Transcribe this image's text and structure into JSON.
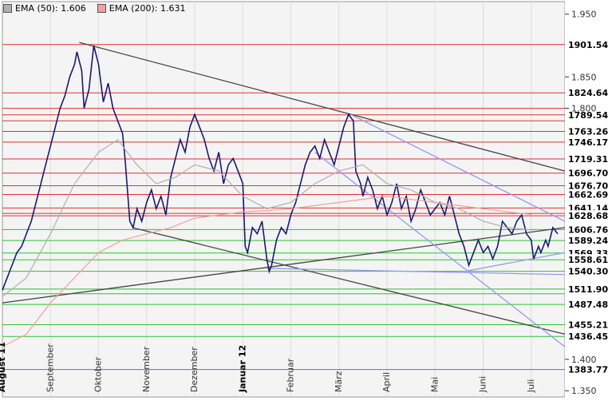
{
  "legend": [
    {
      "label": "EMA (50): 1.606",
      "color": "#b0b0b0"
    },
    {
      "label": "EMA (200): 1.631",
      "color": "#f0a0a0"
    }
  ],
  "chart_data": {
    "type": "line",
    "y_axis": {
      "ticks": [
        {
          "value": 1.95,
          "label": "1.950"
        },
        {
          "value": 1.85,
          "label": "1.850"
        },
        {
          "value": 1.8,
          "label": "1.800"
        },
        {
          "value": 1.4,
          "label": "1.400"
        },
        {
          "value": 1.35,
          "label": "1.350"
        }
      ],
      "ylim": [
        1.34,
        1.97
      ]
    },
    "x_axis": {
      "labels": [
        {
          "label": "August 11",
          "bold": true,
          "x": 0.5
        },
        {
          "label": "September",
          "bold": false,
          "x": 1.5
        },
        {
          "label": "Oktober",
          "bold": false,
          "x": 2.5
        },
        {
          "label": "November",
          "bold": false,
          "x": 3.5
        },
        {
          "label": "Dezember",
          "bold": false,
          "x": 4.5
        },
        {
          "label": "Januar 12",
          "bold": true,
          "x": 5.5
        },
        {
          "label": "Februar",
          "bold": false,
          "x": 6.5
        },
        {
          "label": "März",
          "bold": false,
          "x": 7.5
        },
        {
          "label": "April",
          "bold": false,
          "x": 8.5
        },
        {
          "label": "Mai",
          "bold": false,
          "x": 9.5
        },
        {
          "label": "Juni",
          "bold": false,
          "x": 10.5
        },
        {
          "label": "Juli",
          "bold": false,
          "x": 11.5
        }
      ],
      "xlim": [
        0,
        11.7
      ]
    },
    "resistance_levels": [
      {
        "value": 1.90154,
        "label": "1901.54"
      },
      {
        "value": 1.82464,
        "label": "1824.64"
      },
      {
        "value": 1.8,
        "label": ""
      },
      {
        "value": 1.78954,
        "label": "1789.54"
      },
      {
        "value": 1.78,
        "label": ""
      },
      {
        "value": 1.76326,
        "label": "1763.26"
      },
      {
        "value": 1.74617,
        "label": "1746.17"
      },
      {
        "value": 1.71931,
        "label": "1719.31"
      },
      {
        "value": 1.6967,
        "label": "1696.70"
      },
      {
        "value": 1.6767,
        "label": "1676.70"
      },
      {
        "value": 1.66269,
        "label": "1662.69"
      },
      {
        "value": 1.6411,
        "label": "1641.14"
      },
      {
        "value": 1.6325,
        "label": ""
      },
      {
        "value": 1.62868,
        "label": "1628.68"
      }
    ],
    "support_levels": [
      {
        "value": 1.60676,
        "label": "1606.76"
      },
      {
        "value": 1.58924,
        "label": "1589.24"
      },
      {
        "value": 1.56933,
        "label": "1569.33"
      },
      {
        "value": 1.5586,
        "label": "1558.61"
      },
      {
        "value": 1.5403,
        "label": "1540.30"
      },
      {
        "value": 1.5119,
        "label": "1511.90"
      },
      {
        "value": 1.5045,
        "label": ""
      },
      {
        "value": 1.48748,
        "label": "1487.48"
      },
      {
        "value": 1.45521,
        "label": "1455.21"
      },
      {
        "value": 1.43645,
        "label": "1436.45"
      }
    ],
    "blue_level": {
      "value": 1.38377,
      "label": "1383.77"
    },
    "series": [
      {
        "name": "Price",
        "color": "#1a1a6e",
        "points": [
          [
            0.0,
            1.51
          ],
          [
            0.1,
            1.53
          ],
          [
            0.2,
            1.55
          ],
          [
            0.3,
            1.57
          ],
          [
            0.4,
            1.58
          ],
          [
            0.5,
            1.6
          ],
          [
            0.6,
            1.62
          ],
          [
            0.7,
            1.65
          ],
          [
            0.8,
            1.68
          ],
          [
            0.9,
            1.71
          ],
          [
            1.0,
            1.74
          ],
          [
            1.1,
            1.77
          ],
          [
            1.2,
            1.8
          ],
          [
            1.3,
            1.82
          ],
          [
            1.4,
            1.85
          ],
          [
            1.5,
            1.87
          ],
          [
            1.55,
            1.89
          ],
          [
            1.65,
            1.86
          ],
          [
            1.7,
            1.8
          ],
          [
            1.8,
            1.83
          ],
          [
            1.9,
            1.9
          ],
          [
            2.0,
            1.87
          ],
          [
            2.1,
            1.81
          ],
          [
            2.2,
            1.84
          ],
          [
            2.3,
            1.8
          ],
          [
            2.4,
            1.78
          ],
          [
            2.5,
            1.76
          ],
          [
            2.55,
            1.72
          ],
          [
            2.65,
            1.62
          ],
          [
            2.72,
            1.61
          ],
          [
            2.8,
            1.64
          ],
          [
            2.9,
            1.62
          ],
          [
            3.0,
            1.65
          ],
          [
            3.1,
            1.67
          ],
          [
            3.2,
            1.64
          ],
          [
            3.3,
            1.66
          ],
          [
            3.4,
            1.63
          ],
          [
            3.5,
            1.69
          ],
          [
            3.6,
            1.72
          ],
          [
            3.7,
            1.75
          ],
          [
            3.8,
            1.73
          ],
          [
            3.9,
            1.77
          ],
          [
            4.0,
            1.79
          ],
          [
            4.1,
            1.77
          ],
          [
            4.2,
            1.75
          ],
          [
            4.3,
            1.72
          ],
          [
            4.4,
            1.7
          ],
          [
            4.5,
            1.73
          ],
          [
            4.6,
            1.68
          ],
          [
            4.7,
            1.71
          ],
          [
            4.8,
            1.72
          ],
          [
            4.9,
            1.7
          ],
          [
            5.0,
            1.68
          ],
          [
            5.05,
            1.58
          ],
          [
            5.1,
            1.57
          ],
          [
            5.2,
            1.61
          ],
          [
            5.3,
            1.6
          ],
          [
            5.4,
            1.62
          ],
          [
            5.5,
            1.56
          ],
          [
            5.55,
            1.54
          ],
          [
            5.6,
            1.55
          ],
          [
            5.7,
            1.59
          ],
          [
            5.8,
            1.61
          ],
          [
            5.9,
            1.6
          ],
          [
            6.0,
            1.63
          ],
          [
            6.1,
            1.65
          ],
          [
            6.2,
            1.68
          ],
          [
            6.3,
            1.71
          ],
          [
            6.4,
            1.73
          ],
          [
            6.5,
            1.74
          ],
          [
            6.6,
            1.72
          ],
          [
            6.7,
            1.75
          ],
          [
            6.8,
            1.73
          ],
          [
            6.9,
            1.71
          ],
          [
            7.0,
            1.74
          ],
          [
            7.1,
            1.77
          ],
          [
            7.2,
            1.79
          ],
          [
            7.3,
            1.78
          ],
          [
            7.35,
            1.7
          ],
          [
            7.45,
            1.68
          ],
          [
            7.5,
            1.66
          ],
          [
            7.6,
            1.69
          ],
          [
            7.7,
            1.67
          ],
          [
            7.8,
            1.64
          ],
          [
            7.9,
            1.66
          ],
          [
            8.0,
            1.63
          ],
          [
            8.1,
            1.65
          ],
          [
            8.2,
            1.68
          ],
          [
            8.3,
            1.64
          ],
          [
            8.4,
            1.66
          ],
          [
            8.5,
            1.62
          ],
          [
            8.6,
            1.64
          ],
          [
            8.7,
            1.67
          ],
          [
            8.8,
            1.65
          ],
          [
            8.9,
            1.63
          ],
          [
            9.0,
            1.64
          ],
          [
            9.1,
            1.65
          ],
          [
            9.2,
            1.63
          ],
          [
            9.3,
            1.66
          ],
          [
            9.4,
            1.63
          ],
          [
            9.5,
            1.6
          ],
          [
            9.6,
            1.58
          ],
          [
            9.7,
            1.55
          ],
          [
            9.8,
            1.57
          ],
          [
            9.9,
            1.59
          ],
          [
            10.0,
            1.57
          ],
          [
            10.1,
            1.58
          ],
          [
            10.2,
            1.56
          ],
          [
            10.3,
            1.58
          ],
          [
            10.4,
            1.62
          ],
          [
            10.5,
            1.61
          ],
          [
            10.6,
            1.6
          ],
          [
            10.7,
            1.62
          ],
          [
            10.8,
            1.63
          ],
          [
            10.9,
            1.6
          ],
          [
            11.0,
            1.59
          ],
          [
            11.05,
            1.56
          ],
          [
            11.15,
            1.58
          ],
          [
            11.2,
            1.57
          ],
          [
            11.3,
            1.59
          ],
          [
            11.35,
            1.58
          ],
          [
            11.45,
            1.61
          ],
          [
            11.55,
            1.6
          ]
        ]
      },
      {
        "name": "EMA (50)",
        "color": "#b0b0b0",
        "points": [
          [
            0.0,
            1.5
          ],
          [
            0.5,
            1.53
          ],
          [
            1.0,
            1.6
          ],
          [
            1.5,
            1.68
          ],
          [
            2.0,
            1.73
          ],
          [
            2.4,
            1.75
          ],
          [
            2.8,
            1.71
          ],
          [
            3.2,
            1.68
          ],
          [
            3.6,
            1.69
          ],
          [
            4.0,
            1.71
          ],
          [
            4.5,
            1.7
          ],
          [
            5.0,
            1.66
          ],
          [
            5.5,
            1.64
          ],
          [
            6.0,
            1.65
          ],
          [
            6.5,
            1.68
          ],
          [
            7.0,
            1.7
          ],
          [
            7.5,
            1.71
          ],
          [
            8.0,
            1.68
          ],
          [
            8.5,
            1.67
          ],
          [
            9.0,
            1.65
          ],
          [
            9.5,
            1.64
          ],
          [
            10.0,
            1.62
          ],
          [
            10.5,
            1.61
          ],
          [
            11.0,
            1.606
          ]
        ]
      },
      {
        "name": "EMA (200)",
        "color": "#f0a0a0",
        "points": [
          [
            0.0,
            1.42
          ],
          [
            0.5,
            1.44
          ],
          [
            1.0,
            1.49
          ],
          [
            1.5,
            1.53
          ],
          [
            2.0,
            1.57
          ],
          [
            2.5,
            1.59
          ],
          [
            3.0,
            1.6
          ],
          [
            3.5,
            1.61
          ],
          [
            4.0,
            1.625
          ],
          [
            4.5,
            1.63
          ],
          [
            5.0,
            1.635
          ],
          [
            5.5,
            1.637
          ],
          [
            6.0,
            1.64
          ],
          [
            6.5,
            1.645
          ],
          [
            7.0,
            1.65
          ],
          [
            7.5,
            1.655
          ],
          [
            8.0,
            1.66
          ],
          [
            8.5,
            1.655
          ],
          [
            9.0,
            1.65
          ],
          [
            9.5,
            1.645
          ],
          [
            10.0,
            1.64
          ],
          [
            10.5,
            1.635
          ],
          [
            11.0,
            1.631
          ]
        ]
      }
    ],
    "trendlines": [
      {
        "color": "#444444",
        "points": [
          [
            1.6,
            1.905
          ],
          [
            11.7,
            1.7
          ]
        ]
      },
      {
        "color": "#444444",
        "points": [
          [
            2.7,
            1.61
          ],
          [
            11.7,
            1.44
          ]
        ]
      },
      {
        "color": "#444444",
        "points": [
          [
            0.0,
            1.49
          ],
          [
            11.7,
            1.61
          ]
        ]
      },
      {
        "color": "#9999ee",
        "points": [
          [
            7.25,
            1.79
          ],
          [
            11.7,
            1.62
          ]
        ]
      },
      {
        "color": "#9999ee",
        "points": [
          [
            6.5,
            1.73
          ],
          [
            11.7,
            1.42
          ]
        ]
      },
      {
        "color": "#9999ee",
        "points": [
          [
            9.6,
            1.54
          ],
          [
            11.7,
            1.57
          ]
        ]
      },
      {
        "color": "#9999ee",
        "points": [
          [
            5.5,
            1.545
          ],
          [
            11.7,
            1.535
          ]
        ]
      }
    ]
  }
}
